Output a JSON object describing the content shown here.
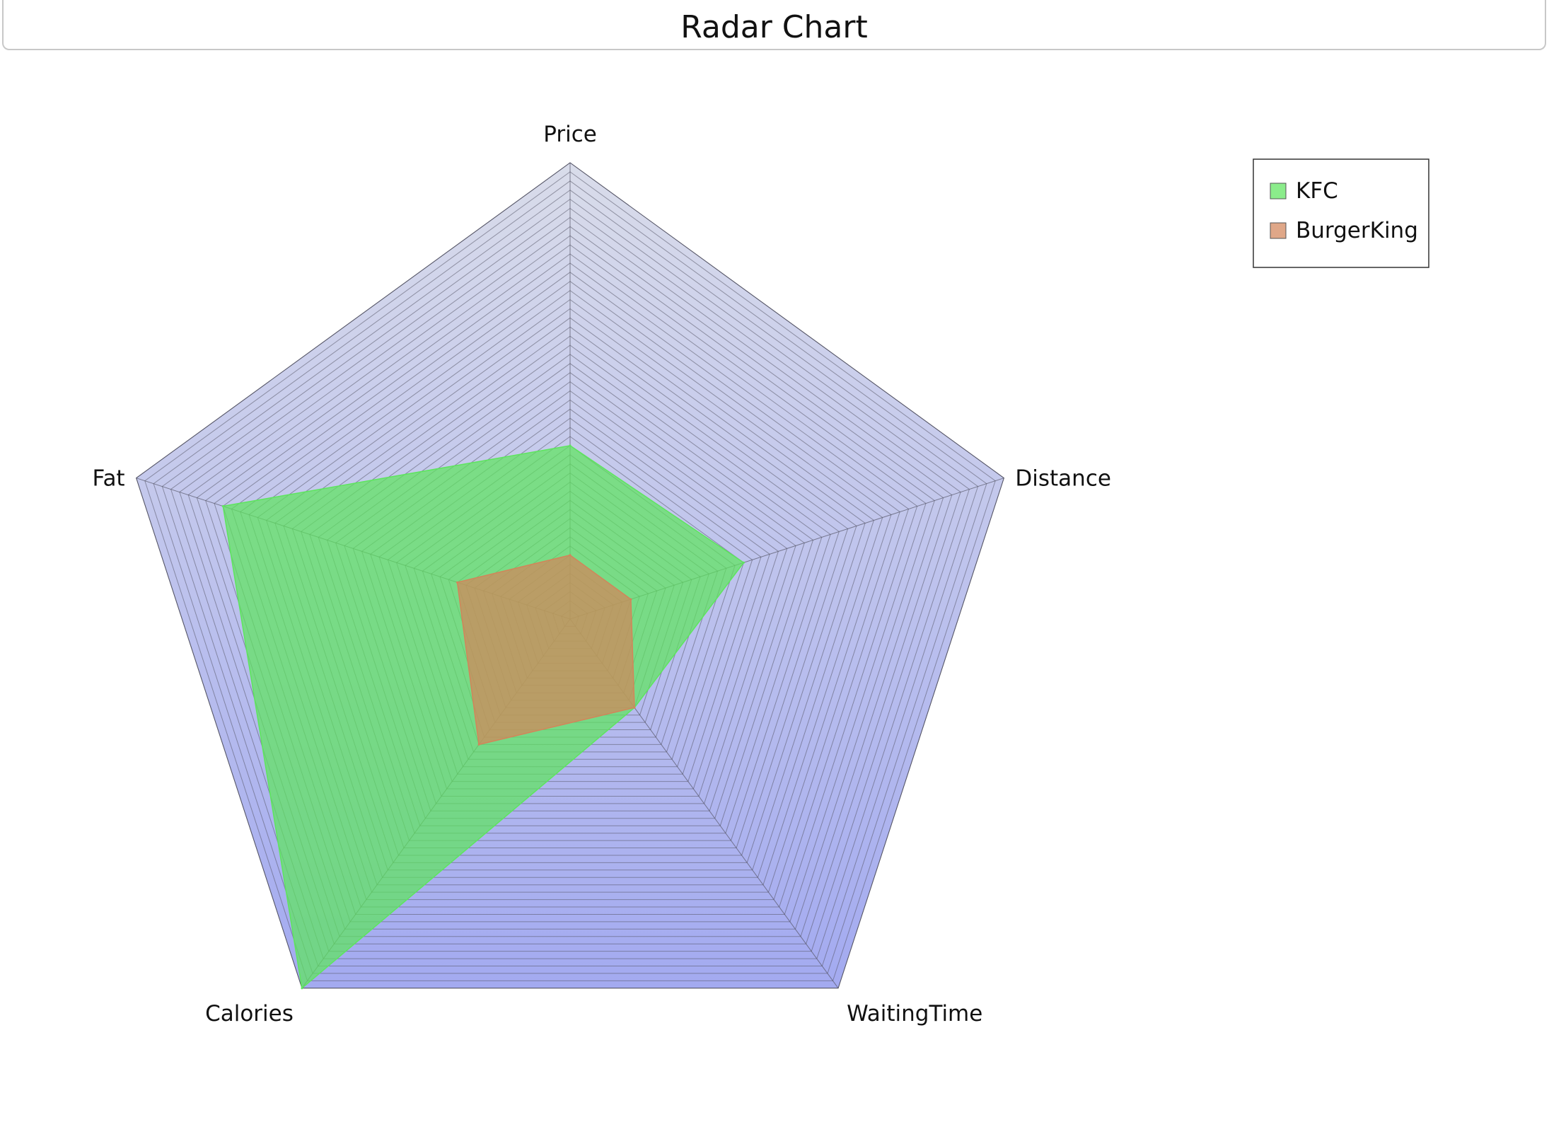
{
  "title": "Radar Chart",
  "chart_data": {
    "type": "radar",
    "title": "Radar Chart",
    "categories": [
      "Price",
      "Distance",
      "WaitingTime",
      "Calories",
      "Fat"
    ],
    "range": [
      0,
      50
    ],
    "grid_levels": 50,
    "legend_placement": "top-right",
    "series": [
      {
        "name": "KFC",
        "values": [
          19,
          20,
          12,
          50,
          40
        ],
        "color": "#5ee55e"
      },
      {
        "name": "BurgerKing",
        "values": [
          7,
          7,
          12,
          17,
          13
        ],
        "color": "#d2855a"
      }
    ],
    "background_gradient": [
      "#d9dcea",
      "#a3aaf0"
    ],
    "grid_color": "#555566"
  }
}
